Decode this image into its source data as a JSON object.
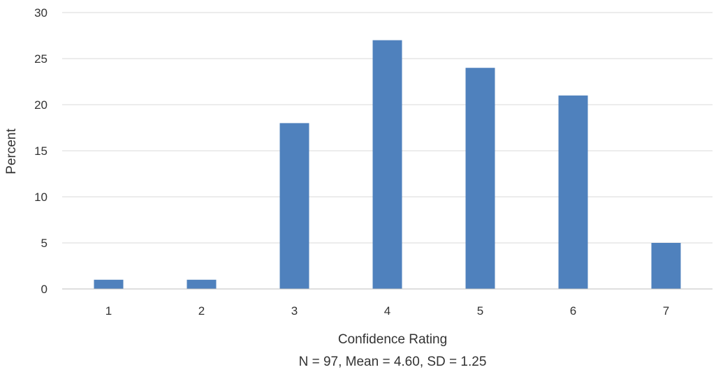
{
  "chart_data": {
    "type": "bar",
    "categories": [
      "1",
      "2",
      "3",
      "4",
      "5",
      "6",
      "7"
    ],
    "values": [
      1,
      1,
      18,
      27,
      24,
      21,
      5
    ],
    "title": "",
    "xlabel": "Confidence Rating",
    "xlabel_sub": "N = 97, Mean = 4.60,  SD = 1.25",
    "ylabel": "Percent",
    "ylim": [
      0,
      30
    ],
    "yticks": [
      0,
      5,
      10,
      15,
      20,
      25,
      30
    ],
    "grid": true,
    "legend": "none",
    "bar_color": "#4f81bd"
  }
}
